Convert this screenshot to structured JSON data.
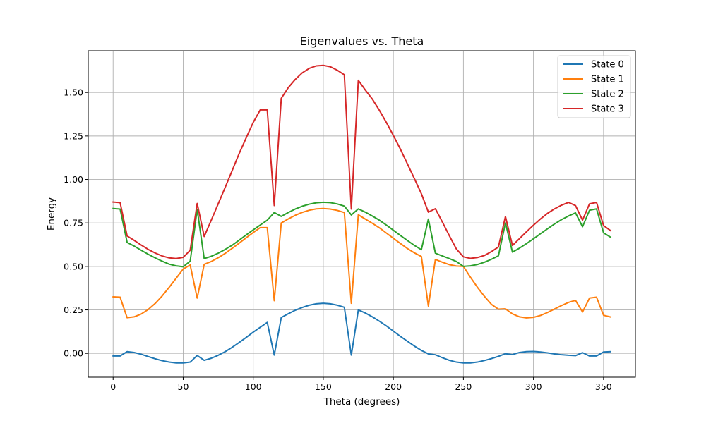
{
  "chart_data": {
    "type": "line",
    "title": "Eigenvalues vs. Theta",
    "xlabel": "Theta (degrees)",
    "ylabel": "Energy",
    "xlim": [
      -17.75,
      372.75
    ],
    "ylim": [
      -0.137,
      1.74
    ],
    "xticks": [
      0,
      50,
      100,
      150,
      200,
      250,
      300,
      350
    ],
    "xtick_labels": [
      "0",
      "50",
      "100",
      "150",
      "200",
      "250",
      "300",
      "350"
    ],
    "yticks": [
      0.0,
      0.25,
      0.5,
      0.75,
      1.0,
      1.25,
      1.5
    ],
    "ytick_labels": [
      "0.00",
      "0.25",
      "0.50",
      "0.75",
      "1.00",
      "1.25",
      "1.50"
    ],
    "grid": true,
    "legend_position": "top-right",
    "x": [
      0,
      5,
      10,
      15,
      20,
      25,
      30,
      35,
      40,
      45,
      50,
      55,
      60,
      65,
      70,
      75,
      80,
      85,
      90,
      95,
      100,
      105,
      110,
      115,
      120,
      125,
      130,
      135,
      140,
      145,
      150,
      155,
      160,
      165,
      170,
      175,
      180,
      185,
      190,
      195,
      200,
      205,
      210,
      215,
      220,
      225,
      230,
      235,
      240,
      245,
      250,
      255,
      260,
      265,
      270,
      275,
      280,
      285,
      290,
      295,
      300,
      305,
      310,
      315,
      320,
      325,
      330,
      335,
      340,
      345,
      350,
      355
    ],
    "series": [
      {
        "name": "State 0",
        "color": "#1f77b4",
        "values": [
          -0.015,
          -0.015,
          0.01,
          0.005,
          -0.005,
          -0.018,
          -0.031,
          -0.042,
          -0.05,
          -0.055,
          -0.055,
          -0.05,
          -0.012,
          -0.04,
          -0.028,
          -0.011,
          0.01,
          0.035,
          0.063,
          0.092,
          0.122,
          0.15,
          0.178,
          -0.01,
          0.206,
          0.228,
          0.248,
          0.264,
          0.277,
          0.285,
          0.288,
          0.285,
          0.277,
          0.265,
          -0.01,
          0.25,
          0.232,
          0.21,
          0.185,
          0.158,
          0.128,
          0.098,
          0.07,
          0.042,
          0.017,
          -0.003,
          -0.008,
          -0.025,
          -0.04,
          -0.05,
          -0.055,
          -0.055,
          -0.05,
          -0.041,
          -0.03,
          -0.017,
          -0.002,
          -0.007,
          0.005,
          0.01,
          0.011,
          0.008,
          0.003,
          -0.003,
          -0.008,
          -0.011,
          -0.013,
          0.004,
          -0.015,
          -0.015,
          0.008,
          0.01
        ]
      },
      {
        "name": "State 1",
        "color": "#ff7f0e",
        "values": [
          0.325,
          0.323,
          0.205,
          0.21,
          0.226,
          0.252,
          0.287,
          0.33,
          0.38,
          0.432,
          0.485,
          0.508,
          0.318,
          0.512,
          0.528,
          0.55,
          0.575,
          0.604,
          0.634,
          0.665,
          0.695,
          0.723,
          0.723,
          0.303,
          0.75,
          0.773,
          0.794,
          0.811,
          0.823,
          0.831,
          0.833,
          0.83,
          0.822,
          0.81,
          0.288,
          0.797,
          0.772,
          0.748,
          0.722,
          0.692,
          0.662,
          0.632,
          0.603,
          0.578,
          0.557,
          0.272,
          0.54,
          0.524,
          0.51,
          0.502,
          0.5,
          0.438,
          0.38,
          0.328,
          0.282,
          0.254,
          0.256,
          0.227,
          0.21,
          0.204,
          0.207,
          0.218,
          0.235,
          0.255,
          0.275,
          0.293,
          0.305,
          0.238,
          0.318,
          0.323,
          0.219,
          0.209
        ]
      },
      {
        "name": "State 2",
        "color": "#2ca02c",
        "values": [
          0.833,
          0.83,
          0.638,
          0.617,
          0.593,
          0.57,
          0.549,
          0.53,
          0.513,
          0.503,
          0.498,
          0.53,
          0.828,
          0.545,
          0.558,
          0.576,
          0.598,
          0.622,
          0.651,
          0.681,
          0.71,
          0.738,
          0.766,
          0.81,
          0.788,
          0.81,
          0.83,
          0.846,
          0.858,
          0.866,
          0.869,
          0.867,
          0.859,
          0.847,
          0.796,
          0.831,
          0.812,
          0.79,
          0.766,
          0.738,
          0.708,
          0.678,
          0.649,
          0.621,
          0.596,
          0.772,
          0.576,
          0.56,
          0.545,
          0.528,
          0.5,
          0.503,
          0.511,
          0.524,
          0.541,
          0.561,
          0.75,
          0.582,
          0.605,
          0.631,
          0.659,
          0.688,
          0.716,
          0.744,
          0.769,
          0.79,
          0.808,
          0.728,
          0.823,
          0.831,
          0.693,
          0.668
        ]
      },
      {
        "name": "State 3",
        "color": "#d62728",
        "values": [
          0.87,
          0.867,
          0.675,
          0.65,
          0.623,
          0.598,
          0.577,
          0.56,
          0.549,
          0.545,
          0.552,
          0.593,
          0.862,
          0.672,
          0.765,
          0.86,
          0.955,
          1.052,
          1.15,
          1.24,
          1.328,
          1.4,
          1.4,
          0.85,
          1.466,
          1.528,
          1.575,
          1.613,
          1.639,
          1.653,
          1.656,
          1.648,
          1.628,
          1.602,
          0.83,
          1.57,
          1.514,
          1.462,
          1.398,
          1.328,
          1.253,
          1.175,
          1.09,
          1.005,
          0.918,
          0.812,
          0.832,
          0.755,
          0.676,
          0.6,
          0.555,
          0.546,
          0.551,
          0.563,
          0.585,
          0.612,
          0.787,
          0.62,
          0.66,
          0.699,
          0.737,
          0.773,
          0.805,
          0.831,
          0.852,
          0.868,
          0.85,
          0.766,
          0.86,
          0.868,
          0.735,
          0.706
        ]
      }
    ]
  }
}
